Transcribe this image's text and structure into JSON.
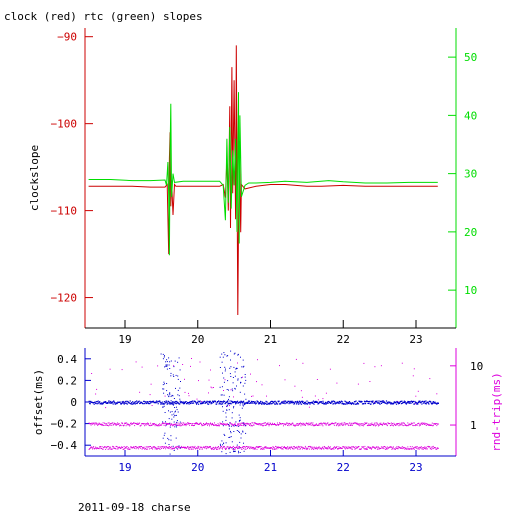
{
  "title": "clock (red) rtc (green) slopes",
  "footer": "2011-09-18 charse",
  "colors": {
    "red": "#cc0000",
    "green": "#00dd00",
    "blue": "#0000cc",
    "magenta": "#dd00dd",
    "axis": "#000000"
  },
  "chart_data": [
    {
      "type": "line",
      "title": "clock (red) rtc (green) slopes",
      "xlabel": "",
      "ylabel": "clockslope",
      "xlim": [
        18.45,
        23.55
      ],
      "ylim": [
        -123.5,
        -89
      ],
      "y2lim": [
        3.5,
        55
      ],
      "xticks": [
        19,
        20,
        21,
        22,
        23
      ],
      "yticks": [
        -120,
        -110,
        -100,
        -90
      ],
      "y2ticks": [
        10,
        20,
        30,
        40,
        50
      ],
      "series": [
        {
          "name": "clock (red)",
          "axis": "left",
          "color": "#cc0000",
          "points": [
            [
              18.5,
              -107.2
            ],
            [
              18.8,
              -107.2
            ],
            [
              19.1,
              -107.2
            ],
            [
              19.35,
              -107.3
            ],
            [
              19.55,
              -107.3
            ],
            [
              19.58,
              -107.0
            ],
            [
              19.6,
              -115.0
            ],
            [
              19.61,
              -104.0
            ],
            [
              19.62,
              -101.0
            ],
            [
              19.63,
              -109.5
            ],
            [
              19.64,
              -106.5
            ],
            [
              19.66,
              -110.5
            ],
            [
              19.68,
              -107.0
            ],
            [
              19.7,
              -107.2
            ],
            [
              20.0,
              -107.2
            ],
            [
              20.3,
              -107.2
            ],
            [
              20.35,
              -107.0
            ],
            [
              20.38,
              -108.5
            ],
            [
              20.4,
              -104.0
            ],
            [
              20.42,
              -110.0
            ],
            [
              20.44,
              -98.0
            ],
            [
              20.45,
              -112.0
            ],
            [
              20.47,
              -93.5
            ],
            [
              20.48,
              -108.0
            ],
            [
              20.5,
              -95.0
            ],
            [
              20.52,
              -111.0
            ],
            [
              20.53,
              -91.0
            ],
            [
              20.55,
              -122.0
            ],
            [
              20.57,
              -102.0
            ],
            [
              20.59,
              -112.5
            ],
            [
              20.6,
              -107.0
            ],
            [
              20.65,
              -107.5
            ],
            [
              20.8,
              -107.2
            ],
            [
              21.0,
              -107.0
            ],
            [
              21.2,
              -107.0
            ],
            [
              21.5,
              -107.2
            ],
            [
              21.7,
              -107.2
            ],
            [
              22.0,
              -107.1
            ],
            [
              22.3,
              -107.2
            ],
            [
              22.6,
              -107.2
            ],
            [
              22.9,
              -107.2
            ],
            [
              23.3,
              -107.2
            ]
          ]
        },
        {
          "name": "rtc (green)",
          "axis": "right",
          "color": "#00dd00",
          "points": [
            [
              18.5,
              29.0
            ],
            [
              18.8,
              29.0
            ],
            [
              19.1,
              28.8
            ],
            [
              19.35,
              28.8
            ],
            [
              19.55,
              28.9
            ],
            [
              19.57,
              28.0
            ],
            [
              19.59,
              32.0
            ],
            [
              19.6,
              26.0
            ],
            [
              19.61,
              16.0
            ],
            [
              19.62,
              34.0
            ],
            [
              19.63,
              42.0
            ],
            [
              19.64,
              26.0
            ],
            [
              19.66,
              30.0
            ],
            [
              19.68,
              28.5
            ],
            [
              19.8,
              28.7
            ],
            [
              20.0,
              28.7
            ],
            [
              20.3,
              28.7
            ],
            [
              20.35,
              28.0
            ],
            [
              20.38,
              22.0
            ],
            [
              20.4,
              36.0
            ],
            [
              20.42,
              25.0
            ],
            [
              20.44,
              38.0
            ],
            [
              20.46,
              24.0
            ],
            [
              20.48,
              34.0
            ],
            [
              20.5,
              28.0
            ],
            [
              20.52,
              36.0
            ],
            [
              20.54,
              20.0
            ],
            [
              20.56,
              44.0
            ],
            [
              20.57,
              18.0
            ],
            [
              20.58,
              40.0
            ],
            [
              20.6,
              26.0
            ],
            [
              20.65,
              28.0
            ],
            [
              20.7,
              28.4
            ],
            [
              20.8,
              28.4
            ],
            [
              21.0,
              28.5
            ],
            [
              21.2,
              28.7
            ],
            [
              21.5,
              28.5
            ],
            [
              21.8,
              28.8
            ],
            [
              22.0,
              28.6
            ],
            [
              22.3,
              28.4
            ],
            [
              22.6,
              28.4
            ],
            [
              22.9,
              28.5
            ],
            [
              23.3,
              28.5
            ]
          ]
        }
      ]
    },
    {
      "type": "scatter",
      "xlabel": "",
      "ylabel": "offset(ms)",
      "y2label": "rnd-trip(ms)",
      "xlim": [
        18.45,
        23.55
      ],
      "ylim": [
        -0.5,
        0.5
      ],
      "y2lim": [
        0.3,
        20
      ],
      "y2scale": "log",
      "xticks": [
        19,
        20,
        21,
        22,
        23
      ],
      "yticks": [
        -0.4,
        -0.2,
        0,
        0.2,
        0.4
      ],
      "y2ticks": [
        1,
        10
      ],
      "series": [
        {
          "name": "offset",
          "axis": "left",
          "color": "#0000cc",
          "baseline": 0.0,
          "spread": 0.015,
          "outlier_regions": [
            [
              19.5,
              19.75
            ],
            [
              20.3,
              20.65
            ]
          ],
          "x_range": [
            18.5,
            23.3
          ]
        },
        {
          "name": "rnd-trip",
          "axis": "right",
          "color": "#dd00dd",
          "bands": [
            0.42,
            1.05
          ],
          "scatter_range": [
            2,
            14
          ],
          "x_range": [
            18.5,
            23.3
          ]
        }
      ]
    }
  ]
}
